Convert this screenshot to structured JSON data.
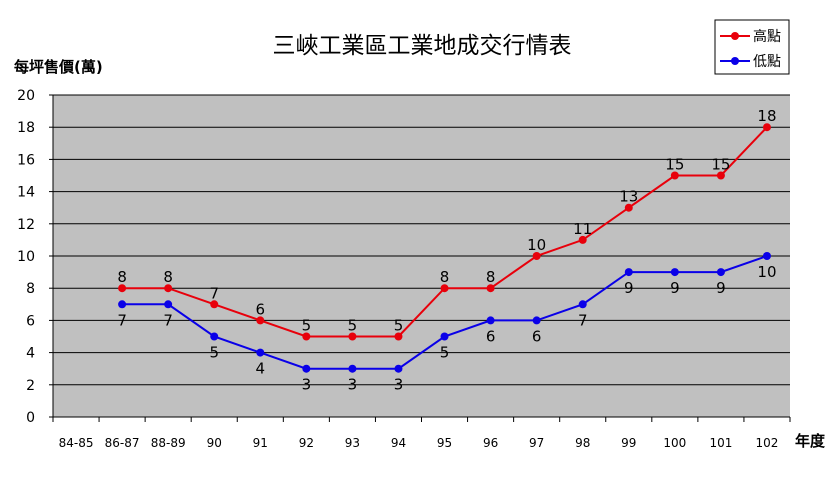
{
  "chart_data": {
    "type": "line",
    "title": "三峽工業區工業地成交行情表",
    "ylabel": "每坪售價(萬)",
    "xlabel": "年度",
    "categories": [
      "84-85",
      "86-87",
      "88-89",
      "90",
      "91",
      "92",
      "93",
      "94",
      "95",
      "96",
      "97",
      "98",
      "99",
      "100",
      "101",
      "102"
    ],
    "ylim": [
      0,
      20
    ],
    "yticks": [
      0,
      2,
      4,
      6,
      8,
      10,
      12,
      14,
      16,
      18,
      20
    ],
    "grid": true,
    "legend_position": "top-right",
    "series": [
      {
        "name": "高點",
        "color": "#e8000b",
        "values": [
          null,
          8,
          8,
          7,
          6,
          5,
          5,
          5,
          8,
          8,
          10,
          11,
          13,
          15,
          15,
          18
        ],
        "label_position": "above"
      },
      {
        "name": "低點",
        "color": "#0a00e8",
        "values": [
          null,
          7,
          7,
          5,
          4,
          3,
          3,
          3,
          5,
          6,
          6,
          7,
          9,
          9,
          9,
          10
        ],
        "label_position": "below"
      }
    ]
  },
  "colors": {
    "plot_background": "#c0c0c0",
    "grid": "#000000"
  }
}
